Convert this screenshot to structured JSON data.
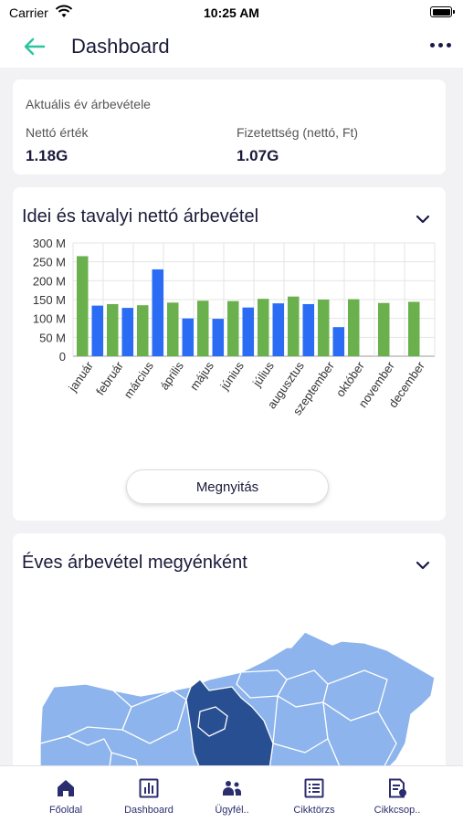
{
  "status_bar": {
    "carrier": "Carrier",
    "time": "10:25 AM"
  },
  "nav": {
    "title": "Dashboard",
    "back_icon": "arrow-left-icon",
    "menu_icon": "more-horizontal-icon"
  },
  "summary": {
    "heading": "Aktuális év árbevétele",
    "items": [
      {
        "label": "Nettó érték",
        "value": "1.18G"
      },
      {
        "label": "Fizetettség (nettó, Ft)",
        "value": "1.07G"
      }
    ]
  },
  "revenue_chart": {
    "title": "Idei és tavalyi nettó árbevétel",
    "button_label": "Megnyitás"
  },
  "chart_data": {
    "type": "bar",
    "title": "Idei és tavalyi nettó árbevétel",
    "categories": [
      "január",
      "február",
      "március",
      "április",
      "május",
      "június",
      "július",
      "augusztus",
      "szeptember",
      "október",
      "november",
      "december"
    ],
    "series": [
      {
        "color": "#6ab04c",
        "values": [
          265,
          138,
          135,
          142,
          147,
          146,
          152,
          158,
          150,
          151,
          141,
          144
        ]
      },
      {
        "color": "#2a6df4",
        "values": [
          134,
          128,
          null,
          100,
          99,
          129,
          140,
          138,
          77,
          null,
          null,
          null
        ]
      }
    ],
    "series_override": {
      "index": 1,
      "category": 2,
      "value": 230
    },
    "y_ticks": [
      "0",
      "50 M",
      "100 M",
      "150 M",
      "200 M",
      "250 M",
      "300 M"
    ],
    "ylim": [
      0,
      300
    ],
    "grid": true
  },
  "map_card": {
    "title": "Éves árbevétel megyénként"
  },
  "map_colors": {
    "light": "#8db4ec",
    "dark": "#284f91"
  },
  "tabs": [
    {
      "label": "Főoldal",
      "icon": "home-icon"
    },
    {
      "label": "Dashboard",
      "icon": "bar-chart-icon"
    },
    {
      "label": "Ügyfél..",
      "icon": "users-icon"
    },
    {
      "label": "Cikktörzs",
      "icon": "list-icon"
    },
    {
      "label": "Cikkcsop..",
      "icon": "document-icon"
    }
  ]
}
